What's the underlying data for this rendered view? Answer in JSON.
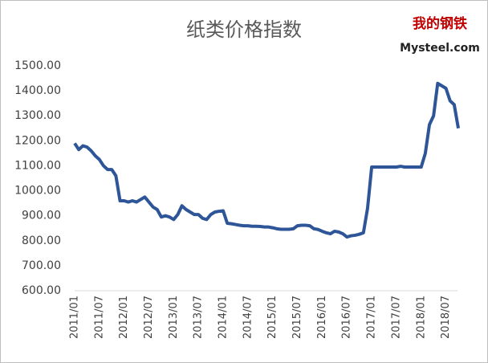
{
  "chart_data": {
    "type": "line",
    "title": "纸类价格指数",
    "logo": {
      "top": "我的钢铁",
      "bottom": "Mysteel.com"
    },
    "categories": [
      "2011/01",
      null,
      null,
      null,
      null,
      null,
      "2011/07",
      null,
      null,
      null,
      null,
      null,
      "2012/01",
      null,
      null,
      null,
      null,
      null,
      "2012/07",
      null,
      null,
      null,
      null,
      null,
      "2013/01",
      null,
      null,
      null,
      null,
      null,
      "2013/07",
      null,
      null,
      null,
      null,
      null,
      "2014/01",
      null,
      null,
      null,
      null,
      null,
      "2014/07",
      null,
      null,
      null,
      null,
      null,
      "2015/01",
      null,
      null,
      null,
      null,
      null,
      "2015/07",
      null,
      null,
      null,
      null,
      null,
      "2016/01",
      null,
      null,
      null,
      null,
      null,
      "2016/07",
      null,
      null,
      null,
      null,
      null,
      "2017/01",
      null,
      null,
      null,
      null,
      null,
      "2017/07",
      null,
      null,
      null,
      null,
      null,
      "2018/01",
      null,
      null,
      null,
      null,
      null,
      "2018/07",
      null,
      null,
      null
    ],
    "series": [
      {
        "name": "纸类价格指数",
        "color": "#2e5597",
        "values": [
          1190,
          1165,
          1180,
          1175,
          1160,
          1140,
          1125,
          1100,
          1085,
          1085,
          1060,
          960,
          960,
          955,
          960,
          955,
          965,
          975,
          955,
          935,
          925,
          895,
          900,
          895,
          885,
          905,
          940,
          925,
          915,
          905,
          905,
          890,
          885,
          905,
          915,
          918,
          920,
          870,
          868,
          865,
          862,
          860,
          860,
          858,
          858,
          857,
          855,
          855,
          852,
          848,
          846,
          846,
          846,
          848,
          860,
          862,
          862,
          860,
          848,
          845,
          838,
          832,
          828,
          838,
          835,
          828,
          815,
          820,
          822,
          826,
          832,
          930,
          1095,
          1095,
          1095,
          1095,
          1095,
          1095,
          1095,
          1098,
          1095,
          1095,
          1095,
          1095,
          1095,
          1150,
          1265,
          1300,
          1430,
          1420,
          1410,
          1360,
          1345,
          1250
        ]
      }
    ],
    "ylim": [
      600,
      1500
    ],
    "yticks": [
      {
        "value": 600,
        "label": "600.00"
      },
      {
        "value": 700,
        "label": "700.00"
      },
      {
        "value": 800,
        "label": "800.00"
      },
      {
        "value": 900,
        "label": "900.00"
      },
      {
        "value": 1000,
        "label": "1000.00"
      },
      {
        "value": 1100,
        "label": "1100.00"
      },
      {
        "value": 1200,
        "label": "1200.00"
      },
      {
        "value": 1300,
        "label": "1300.00"
      },
      {
        "value": 1400,
        "label": "1400.00"
      },
      {
        "value": 1500,
        "label": "1500.00"
      }
    ],
    "grid": false
  }
}
